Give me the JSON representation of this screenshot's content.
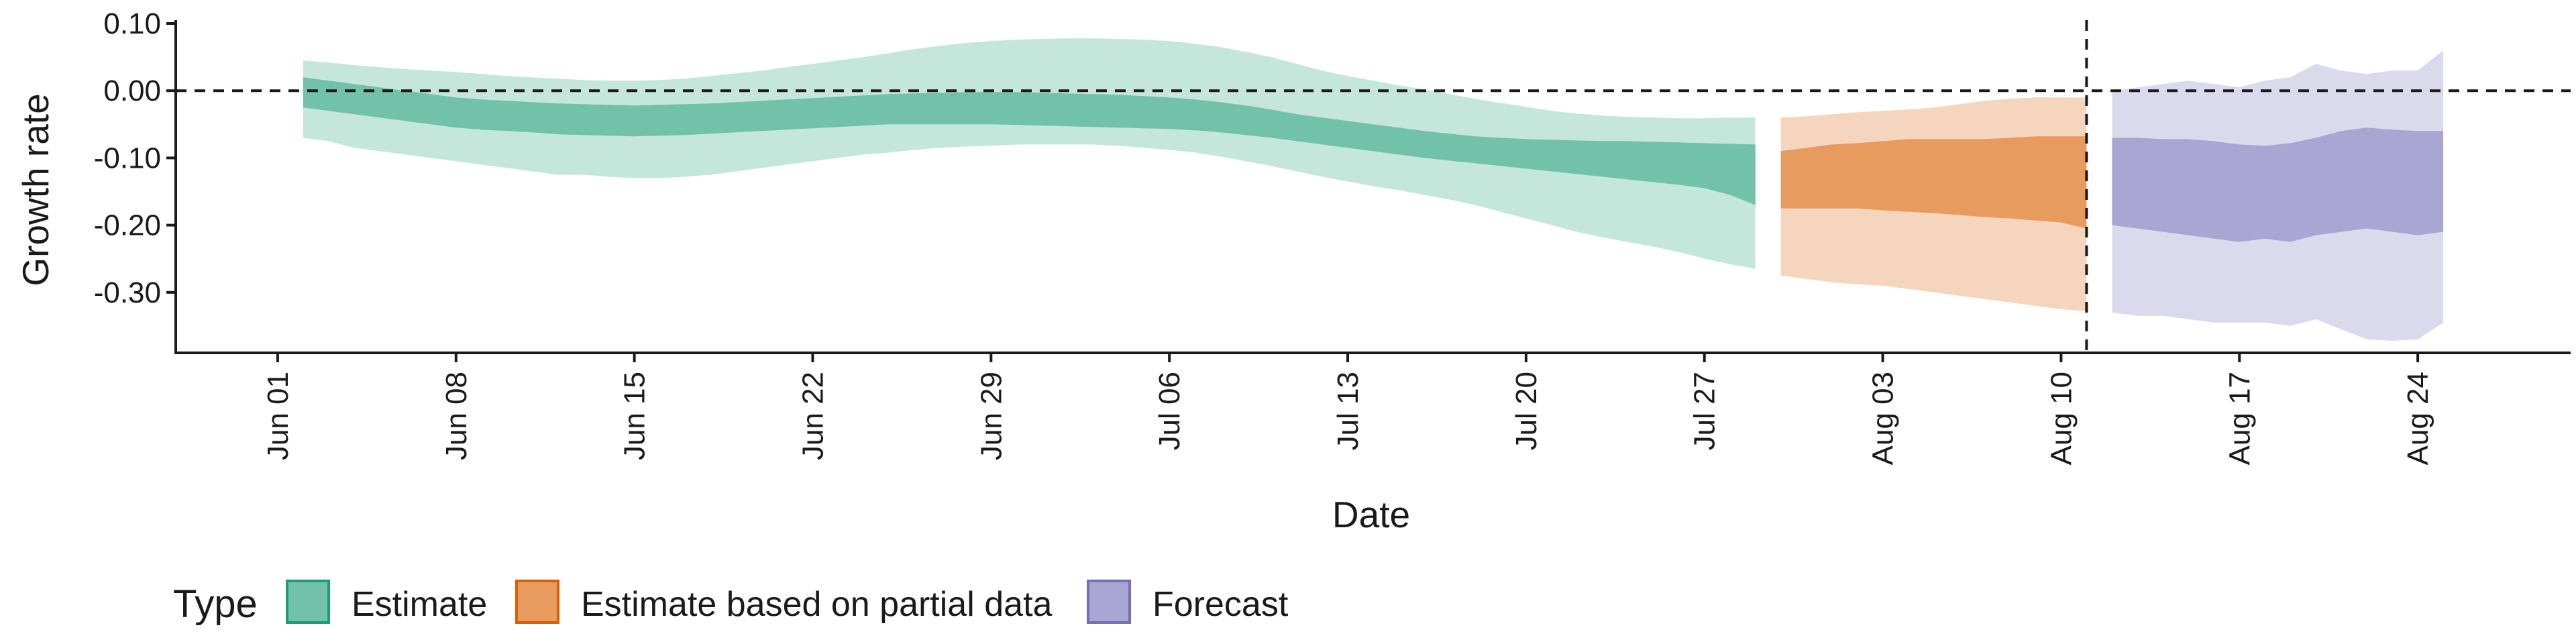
{
  "chart_data": {
    "type": "area",
    "title": "",
    "xlabel": "Date",
    "ylabel": "Growth rate",
    "ylim": [
      -0.39,
      0.105
    ],
    "xlim": [
      "2020-05-28",
      "2020-08-30"
    ],
    "y_ticks": [
      0.1,
      0.0,
      -0.1,
      -0.2,
      -0.3
    ],
    "y_tick_labels": [
      "0.10",
      "0.00",
      "-0.10",
      "-0.20",
      "-0.30"
    ],
    "x_ticks": [
      "2020-06-01",
      "2020-06-08",
      "2020-06-15",
      "2020-06-22",
      "2020-06-29",
      "2020-07-06",
      "2020-07-13",
      "2020-07-20",
      "2020-07-27",
      "2020-08-03",
      "2020-08-10",
      "2020-08-17",
      "2020-08-24"
    ],
    "x_tick_labels": [
      "Jun 01",
      "Jun 08",
      "Jun 15",
      "Jun 22",
      "Jun 29",
      "Jul 06",
      "Jul 13",
      "Jul 20",
      "Jul 27",
      "Aug 03",
      "Aug 10",
      "Aug 17",
      "Aug 24"
    ],
    "reference_lines": {
      "horizontal_y": 0.0,
      "vertical_date": "2020-08-11",
      "style": "dashed"
    },
    "grid": false,
    "legend": {
      "title": "Type",
      "position": "bottom",
      "entries": [
        {
          "label": "Estimate",
          "fill": "#72C2A9",
          "border": "#1B9E77"
        },
        {
          "label": "Estimate based on partial data",
          "fill": "#E89B5F",
          "border": "#D95F02"
        },
        {
          "label": "Forecast",
          "fill": "#A9A6D3",
          "border": "#7570B3"
        }
      ]
    },
    "series": [
      {
        "name": "Estimate",
        "inner_color": "#72C2A9",
        "outer_color": "#C5E6DB",
        "x": [
          "2020-06-02",
          "2020-06-03",
          "2020-06-04",
          "2020-06-05",
          "2020-06-06",
          "2020-06-07",
          "2020-06-08",
          "2020-06-09",
          "2020-06-10",
          "2020-06-11",
          "2020-06-12",
          "2020-06-13",
          "2020-06-14",
          "2020-06-15",
          "2020-06-16",
          "2020-06-17",
          "2020-06-18",
          "2020-06-19",
          "2020-06-20",
          "2020-06-21",
          "2020-06-22",
          "2020-06-23",
          "2020-06-24",
          "2020-06-25",
          "2020-06-26",
          "2020-06-27",
          "2020-06-28",
          "2020-06-29",
          "2020-06-30",
          "2020-07-01",
          "2020-07-02",
          "2020-07-03",
          "2020-07-04",
          "2020-07-05",
          "2020-07-06",
          "2020-07-07",
          "2020-07-08",
          "2020-07-09",
          "2020-07-10",
          "2020-07-11",
          "2020-07-12",
          "2020-07-13",
          "2020-07-14",
          "2020-07-15",
          "2020-07-16",
          "2020-07-17",
          "2020-07-18",
          "2020-07-19",
          "2020-07-20",
          "2020-07-21",
          "2020-07-22",
          "2020-07-23",
          "2020-07-24",
          "2020-07-25",
          "2020-07-26",
          "2020-07-27",
          "2020-07-28",
          "2020-07-29"
        ],
        "lower_90": [
          -0.07,
          -0.075,
          -0.085,
          -0.09,
          -0.095,
          -0.1,
          -0.105,
          -0.11,
          -0.115,
          -0.12,
          -0.125,
          -0.125,
          -0.128,
          -0.13,
          -0.13,
          -0.128,
          -0.125,
          -0.12,
          -0.115,
          -0.11,
          -0.105,
          -0.1,
          -0.095,
          -0.092,
          -0.088,
          -0.085,
          -0.083,
          -0.082,
          -0.08,
          -0.08,
          -0.08,
          -0.08,
          -0.082,
          -0.085,
          -0.088,
          -0.092,
          -0.098,
          -0.105,
          -0.112,
          -0.12,
          -0.128,
          -0.135,
          -0.142,
          -0.148,
          -0.155,
          -0.162,
          -0.17,
          -0.18,
          -0.19,
          -0.2,
          -0.21,
          -0.218,
          -0.225,
          -0.232,
          -0.24,
          -0.25,
          -0.258,
          -0.265
        ],
        "lower_50": [
          -0.025,
          -0.03,
          -0.035,
          -0.04,
          -0.045,
          -0.05,
          -0.055,
          -0.058,
          -0.06,
          -0.062,
          -0.065,
          -0.066,
          -0.067,
          -0.068,
          -0.067,
          -0.066,
          -0.064,
          -0.062,
          -0.06,
          -0.058,
          -0.056,
          -0.054,
          -0.052,
          -0.05,
          -0.05,
          -0.05,
          -0.05,
          -0.05,
          -0.051,
          -0.052,
          -0.053,
          -0.054,
          -0.055,
          -0.056,
          -0.057,
          -0.059,
          -0.062,
          -0.066,
          -0.07,
          -0.075,
          -0.08,
          -0.085,
          -0.09,
          -0.095,
          -0.1,
          -0.104,
          -0.108,
          -0.112,
          -0.116,
          -0.12,
          -0.124,
          -0.128,
          -0.132,
          -0.136,
          -0.14,
          -0.145,
          -0.155,
          -0.17
        ],
        "upper_50": [
          0.02,
          0.015,
          0.01,
          0.005,
          0.0,
          -0.005,
          -0.01,
          -0.013,
          -0.015,
          -0.017,
          -0.019,
          -0.02,
          -0.021,
          -0.022,
          -0.021,
          -0.02,
          -0.019,
          -0.017,
          -0.015,
          -0.013,
          -0.011,
          -0.009,
          -0.007,
          -0.005,
          -0.004,
          -0.003,
          -0.002,
          -0.002,
          -0.002,
          -0.003,
          -0.004,
          -0.005,
          -0.006,
          -0.008,
          -0.01,
          -0.013,
          -0.017,
          -0.022,
          -0.028,
          -0.035,
          -0.04,
          -0.045,
          -0.05,
          -0.055,
          -0.06,
          -0.064,
          -0.068,
          -0.07,
          -0.072,
          -0.073,
          -0.074,
          -0.075,
          -0.075,
          -0.076,
          -0.077,
          -0.078,
          -0.079,
          -0.08
        ],
        "upper_90": [
          0.045,
          0.042,
          0.038,
          0.035,
          0.032,
          0.03,
          0.028,
          0.025,
          0.022,
          0.02,
          0.018,
          0.016,
          0.015,
          0.015,
          0.016,
          0.018,
          0.022,
          0.026,
          0.03,
          0.035,
          0.04,
          0.045,
          0.05,
          0.056,
          0.062,
          0.067,
          0.071,
          0.074,
          0.076,
          0.077,
          0.078,
          0.078,
          0.077,
          0.076,
          0.074,
          0.07,
          0.065,
          0.058,
          0.05,
          0.04,
          0.03,
          0.022,
          0.015,
          0.008,
          0.002,
          -0.005,
          -0.012,
          -0.018,
          -0.024,
          -0.03,
          -0.034,
          -0.037,
          -0.039,
          -0.04,
          -0.041,
          -0.041,
          -0.04,
          -0.04
        ]
      },
      {
        "name": "Estimate based on partial data",
        "inner_color": "#E89B5F",
        "outer_color": "#F6D5BE",
        "x": [
          "2020-07-30",
          "2020-07-31",
          "2020-08-01",
          "2020-08-02",
          "2020-08-03",
          "2020-08-04",
          "2020-08-05",
          "2020-08-06",
          "2020-08-07",
          "2020-08-08",
          "2020-08-09",
          "2020-08-10",
          "2020-08-11"
        ],
        "lower_90": [
          -0.275,
          -0.28,
          -0.285,
          -0.288,
          -0.29,
          -0.295,
          -0.3,
          -0.305,
          -0.31,
          -0.315,
          -0.32,
          -0.325,
          -0.328
        ],
        "lower_50": [
          -0.175,
          -0.175,
          -0.175,
          -0.175,
          -0.178,
          -0.18,
          -0.182,
          -0.185,
          -0.188,
          -0.19,
          -0.193,
          -0.196,
          -0.205
        ],
        "upper_50": [
          -0.09,
          -0.085,
          -0.08,
          -0.078,
          -0.075,
          -0.072,
          -0.072,
          -0.072,
          -0.072,
          -0.07,
          -0.068,
          -0.068,
          -0.068
        ],
        "upper_90": [
          -0.04,
          -0.038,
          -0.035,
          -0.032,
          -0.03,
          -0.028,
          -0.025,
          -0.02,
          -0.015,
          -0.012,
          -0.01,
          -0.01,
          -0.01
        ]
      },
      {
        "name": "Forecast",
        "inner_color": "#A9A6D3",
        "outer_color": "#DBDAEC",
        "x": [
          "2020-08-12",
          "2020-08-13",
          "2020-08-14",
          "2020-08-15",
          "2020-08-16",
          "2020-08-17",
          "2020-08-18",
          "2020-08-19",
          "2020-08-20",
          "2020-08-21",
          "2020-08-22",
          "2020-08-23",
          "2020-08-24",
          "2020-08-25"
        ],
        "lower_90": [
          -0.33,
          -0.335,
          -0.335,
          -0.34,
          -0.345,
          -0.345,
          -0.345,
          -0.35,
          -0.34,
          -0.355,
          -0.37,
          -0.372,
          -0.37,
          -0.345
        ],
        "lower_50": [
          -0.2,
          -0.205,
          -0.21,
          -0.215,
          -0.22,
          -0.225,
          -0.22,
          -0.225,
          -0.215,
          -0.21,
          -0.205,
          -0.21,
          -0.215,
          -0.21
        ],
        "upper_50": [
          -0.07,
          -0.07,
          -0.072,
          -0.072,
          -0.075,
          -0.08,
          -0.082,
          -0.078,
          -0.07,
          -0.06,
          -0.055,
          -0.058,
          -0.06,
          -0.06
        ],
        "upper_90": [
          0.0,
          0.005,
          0.01,
          0.015,
          0.01,
          0.005,
          0.015,
          0.02,
          0.04,
          0.03,
          0.025,
          0.03,
          0.03,
          0.06
        ]
      }
    ]
  }
}
